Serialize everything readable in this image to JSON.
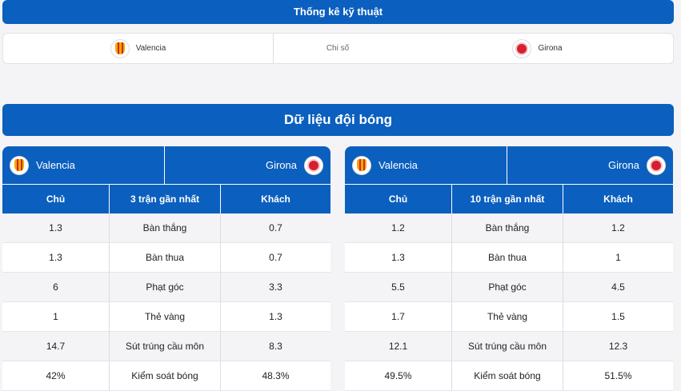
{
  "header": {
    "title": "Thống kê kỹ thuật"
  },
  "info": {
    "home": "Valencia",
    "middle": "Chi số",
    "away": "Girona"
  },
  "section": {
    "title": "Dữ liệu đội bóng"
  },
  "tables": [
    {
      "home": "Valencia",
      "away": "Girona",
      "columns": [
        "Chủ",
        "3 trận gần nhất",
        "Khách"
      ],
      "rows": [
        [
          "1.3",
          "Bàn thắng",
          "0.7"
        ],
        [
          "1.3",
          "Bàn thua",
          "0.7"
        ],
        [
          "6",
          "Phạt góc",
          "3.3"
        ],
        [
          "1",
          "Thẻ vàng",
          "1.3"
        ],
        [
          "14.7",
          "Sút trúng cầu môn",
          "8.3"
        ],
        [
          "42%",
          "Kiểm soát bóng",
          "48.3%"
        ]
      ]
    },
    {
      "home": "Valencia",
      "away": "Girona",
      "columns": [
        "Chủ",
        "10 trận gần nhất",
        "Khách"
      ],
      "rows": [
        [
          "1.2",
          "Bàn thắng",
          "1.2"
        ],
        [
          "1.3",
          "Bàn thua",
          "1"
        ],
        [
          "5.5",
          "Phạt góc",
          "4.5"
        ],
        [
          "1.7",
          "Thẻ vàng",
          "1.5"
        ],
        [
          "12.1",
          "Sút trúng cầu môn",
          "12.3"
        ],
        [
          "49.5%",
          "Kiểm soát bóng",
          "51.5%"
        ]
      ]
    }
  ]
}
